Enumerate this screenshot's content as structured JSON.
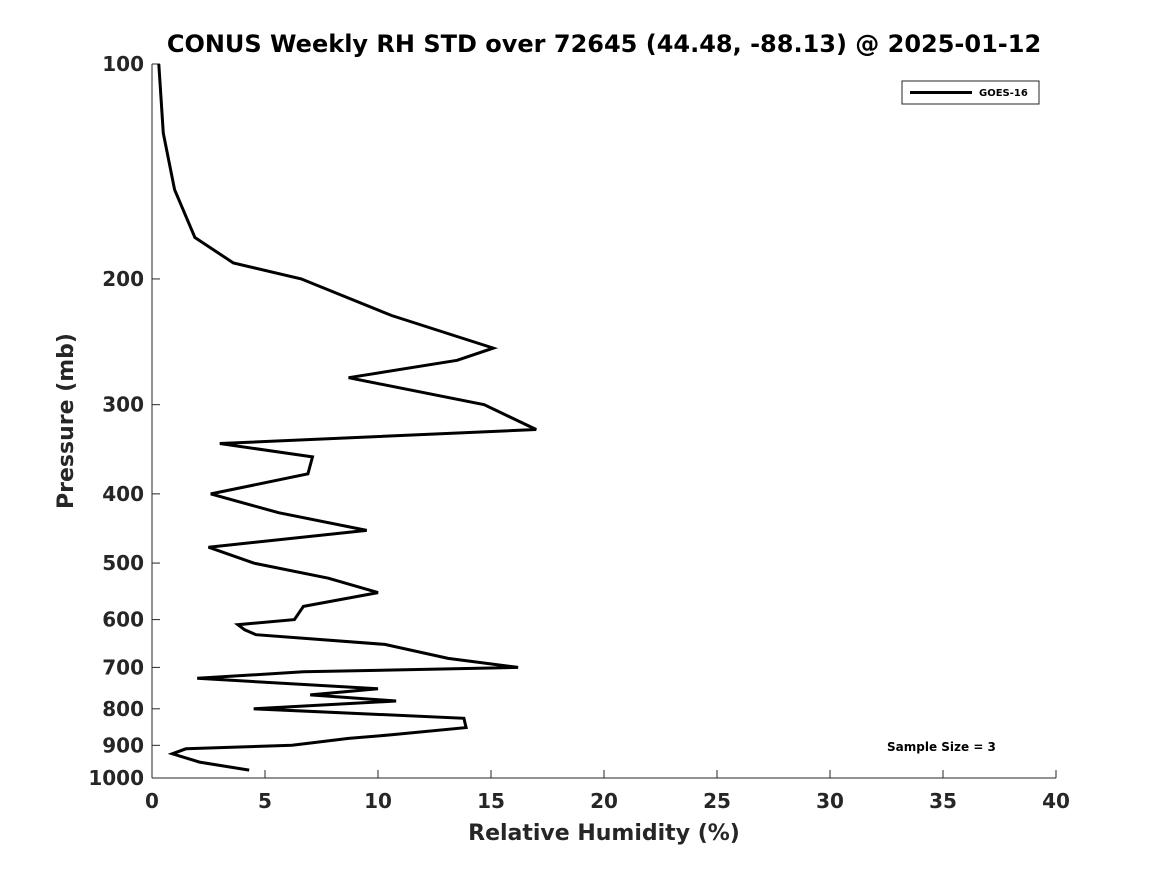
{
  "chart_data": {
    "type": "line",
    "title": "CONUS Weekly RH STD over 72645 (44.48, -88.13) @ 2025-01-12",
    "xlabel": "Relative Humidity (%)",
    "ylabel": "Pressure (mb)",
    "xlim": [
      0,
      40
    ],
    "ylim": [
      100,
      1000
    ],
    "yscale": "log",
    "x_ticks": [
      "0",
      "5",
      "10",
      "15",
      "20",
      "25",
      "30",
      "35",
      "40"
    ],
    "y_ticks": [
      "100",
      "200",
      "300",
      "400",
      "500",
      "600",
      "700",
      "800",
      "900",
      "1000"
    ],
    "grid": false,
    "legend": {
      "position": "top-right",
      "entries": [
        "GOES-16"
      ]
    },
    "annotation": "Sample Size = 3",
    "series": [
      {
        "name": "GOES-16",
        "color": "#000000",
        "points": [
          [
            0.3,
            100
          ],
          [
            0.5,
            125
          ],
          [
            1.0,
            150
          ],
          [
            1.9,
            175
          ],
          [
            3.6,
            190
          ],
          [
            6.6,
            200
          ],
          [
            10.6,
            225
          ],
          [
            15.1,
            250
          ],
          [
            13.5,
            260
          ],
          [
            8.7,
            275
          ],
          [
            14.7,
            300
          ],
          [
            17.0,
            325
          ],
          [
            3.0,
            340
          ],
          [
            7.1,
            355
          ],
          [
            6.9,
            375
          ],
          [
            2.6,
            400
          ],
          [
            5.6,
            425
          ],
          [
            9.5,
            450
          ],
          [
            2.5,
            475
          ],
          [
            4.5,
            500
          ],
          [
            7.8,
            525
          ],
          [
            10.0,
            550
          ],
          [
            6.7,
            575
          ],
          [
            6.3,
            600
          ],
          [
            3.8,
            610
          ],
          [
            4.1,
            620
          ],
          [
            4.6,
            630
          ],
          [
            10.3,
            650
          ],
          [
            13.1,
            680
          ],
          [
            16.2,
            700
          ],
          [
            6.7,
            710
          ],
          [
            2.0,
            725
          ],
          [
            10.0,
            750
          ],
          [
            7.0,
            765
          ],
          [
            10.8,
            780
          ],
          [
            4.5,
            800
          ],
          [
            13.8,
            825
          ],
          [
            13.9,
            850
          ],
          [
            10.6,
            870
          ],
          [
            8.7,
            880
          ],
          [
            6.2,
            900
          ],
          [
            1.5,
            910
          ],
          [
            0.9,
            925
          ],
          [
            2.1,
            950
          ],
          [
            4.3,
            975
          ]
        ]
      }
    ]
  }
}
